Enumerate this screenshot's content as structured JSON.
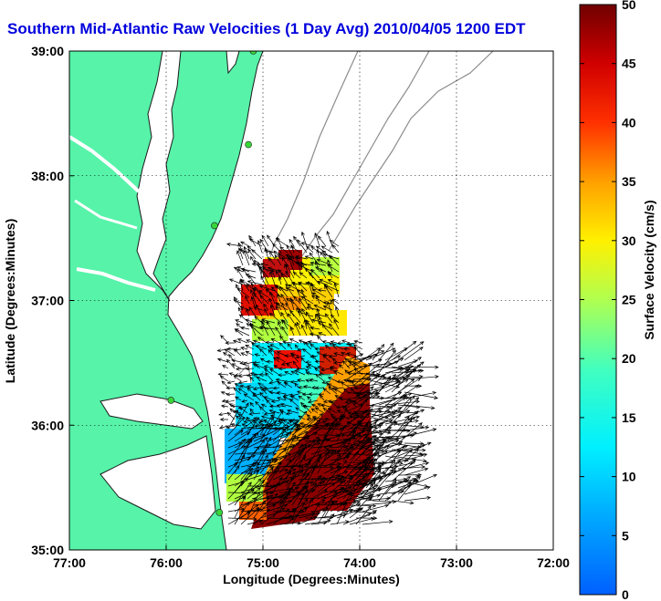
{
  "title": "Southern Mid-Atlantic Raw Velocities (1 Day Avg) 2010/04/05 1200 EDT",
  "colors": {
    "land": "#56f3a9",
    "coast": "#1a1a1a",
    "bathymetry": "#8c8c8c",
    "station": "#39d63a",
    "vector": "#000000",
    "title": "#0000dd"
  },
  "map": {
    "xlabel": "Longitude (Degrees:Minutes)",
    "ylabel": "Latitude (Degrees:Minutes)",
    "lon_range": [
      -77,
      -72
    ],
    "lat_range": [
      35,
      39
    ],
    "lon_ticks": [
      {
        "value": -77,
        "label": "77:00"
      },
      {
        "value": -76,
        "label": "76:00"
      },
      {
        "value": -75,
        "label": "75:00"
      },
      {
        "value": -74,
        "label": "74:00"
      },
      {
        "value": -73,
        "label": "73:00"
      },
      {
        "value": -72,
        "label": "72:00"
      }
    ],
    "lat_ticks": [
      {
        "value": 35,
        "label": "35:00"
      },
      {
        "value": 36,
        "label": "36:00"
      },
      {
        "value": 37,
        "label": "37:00"
      },
      {
        "value": 38,
        "label": "38:00"
      },
      {
        "value": 39,
        "label": "39:00"
      }
    ],
    "grid": true,
    "stations": [
      {
        "lon": -75.1,
        "lat": 39.0
      },
      {
        "lon": -75.15,
        "lat": 38.25
      },
      {
        "lon": -75.5,
        "lat": 37.6
      },
      {
        "lon": -75.95,
        "lat": 36.2
      },
      {
        "lon": -75.45,
        "lat": 35.3
      }
    ]
  },
  "colorbar": {
    "label": "Surface Velocity (cm/s)",
    "min": 0,
    "max": 50,
    "ticks": [
      {
        "value": 0,
        "label": "0"
      },
      {
        "value": 5,
        "label": "5"
      },
      {
        "value": 10,
        "label": "10"
      },
      {
        "value": 15,
        "label": "15"
      },
      {
        "value": 20,
        "label": "20"
      },
      {
        "value": 25,
        "label": "25"
      },
      {
        "value": 30,
        "label": "30"
      },
      {
        "value": 35,
        "label": "35"
      },
      {
        "value": 40,
        "label": "40"
      },
      {
        "value": 45,
        "label": "45"
      },
      {
        "value": 50,
        "label": "50"
      }
    ]
  }
}
